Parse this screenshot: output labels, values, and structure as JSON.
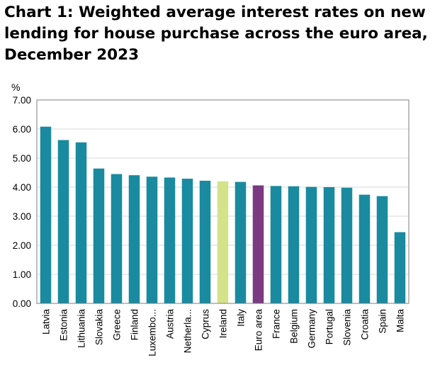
{
  "chart_data": {
    "type": "bar",
    "title": "Chart 1: Weighted average interest rates on new lending for house purchase across the euro area, December 2023",
    "ylabel": "%",
    "xlabel": "",
    "ylim": [
      0,
      7
    ],
    "yticks": [
      "0.00",
      "1.00",
      "2.00",
      "3.00",
      "4.00",
      "5.00",
      "6.00",
      "7.00"
    ],
    "grid": true,
    "categories": [
      "Latvia",
      "Estonia",
      "Lithuania",
      "Slovakia",
      "Greece",
      "Finland",
      "Luxembo...",
      "Austria",
      "Netherla...",
      "Cyprus",
      "Ireland",
      "Italy",
      "Euro area",
      "France",
      "Belgium",
      "Germany",
      "Portugal",
      "Slovenia",
      "Croatia",
      "Spain",
      "Malta"
    ],
    "values": [
      6.08,
      5.62,
      5.54,
      4.64,
      4.45,
      4.41,
      4.36,
      4.33,
      4.29,
      4.22,
      4.2,
      4.18,
      4.06,
      4.04,
      4.03,
      4.01,
      4.0,
      3.98,
      3.74,
      3.69,
      2.45
    ],
    "highlight_colors": {
      "Ireland": "#d4e38a",
      "Euro area": "#7b3a82"
    },
    "default_color": "#1a8aa0",
    "grid_color": "#d9d9d9",
    "frame_color": "#7f7f7f"
  }
}
